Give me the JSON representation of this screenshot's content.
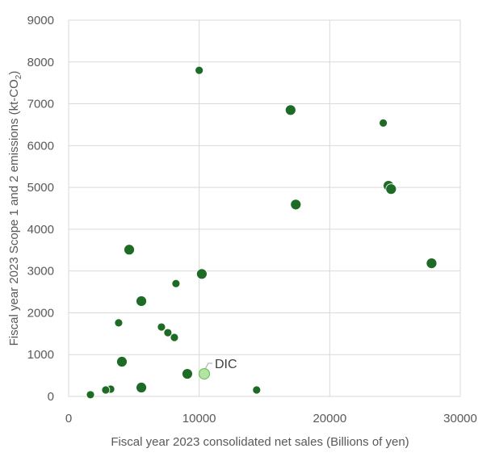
{
  "chart_data": {
    "type": "scatter",
    "title": "",
    "xlabel": "Fiscal year 2023 consolidated net sales (Billions of yen)",
    "ylabel_main": "Fiscal year 2023 Scope 1 and 2 emissions (kt-CO",
    "ylabel_sub": "2",
    "ylabel_end": ")",
    "xlim": [
      0,
      30000
    ],
    "ylim": [
      0,
      9000
    ],
    "xticks": [
      0,
      10000,
      20000,
      30000
    ],
    "yticks": [
      0,
      1000,
      2000,
      3000,
      4000,
      5000,
      6000,
      7000,
      8000,
      9000
    ],
    "grid": true,
    "colors": {
      "points": "#1e6b25",
      "highlight_fill": "#b5e3a3",
      "highlight_stroke": "#6cc25a",
      "grid": "#d9d9d9"
    },
    "points": [
      {
        "x": 10000,
        "y": 7800,
        "size": 1
      },
      {
        "x": 17000,
        "y": 6850,
        "size": 1.3
      },
      {
        "x": 24100,
        "y": 6540,
        "size": 1
      },
      {
        "x": 24500,
        "y": 5040,
        "size": 1.3
      },
      {
        "x": 24700,
        "y": 4960,
        "size": 1.3
      },
      {
        "x": 17400,
        "y": 4590,
        "size": 1.3
      },
      {
        "x": 27800,
        "y": 3185,
        "size": 1.3
      },
      {
        "x": 4640,
        "y": 3510,
        "size": 1.3
      },
      {
        "x": 10200,
        "y": 2930,
        "size": 1.3
      },
      {
        "x": 8220,
        "y": 2700,
        "size": 1
      },
      {
        "x": 5570,
        "y": 2280,
        "size": 1.3
      },
      {
        "x": 3830,
        "y": 1760,
        "size": 1
      },
      {
        "x": 7110,
        "y": 1660,
        "size": 1
      },
      {
        "x": 7600,
        "y": 1525,
        "size": 1
      },
      {
        "x": 8100,
        "y": 1410,
        "size": 1
      },
      {
        "x": 4080,
        "y": 830,
        "size": 1.3
      },
      {
        "x": 9090,
        "y": 540,
        "size": 1.3
      },
      {
        "x": 5570,
        "y": 212,
        "size": 1.3
      },
      {
        "x": 14400,
        "y": 155,
        "size": 1
      },
      {
        "x": 3220,
        "y": 175,
        "size": 1
      },
      {
        "x": 2840,
        "y": 155,
        "size": 1
      },
      {
        "x": 1670,
        "y": 40,
        "size": 1
      }
    ],
    "highlight": {
      "label": "DIC",
      "x": 10390,
      "y": 540
    }
  }
}
